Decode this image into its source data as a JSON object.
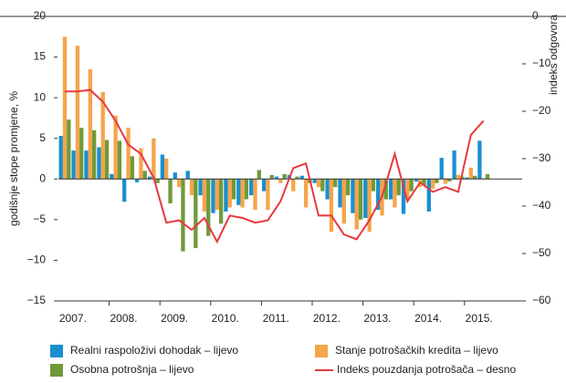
{
  "chart_data": {
    "type": "bar_line",
    "y_label": "godišnje stope promjene, %",
    "y2_label": "indeks odgovora",
    "categories": [
      null,
      "2007.",
      null,
      null,
      null,
      "2008.",
      null,
      null,
      null,
      "2009.",
      null,
      null,
      null,
      "2010.",
      null,
      null,
      null,
      "2011.",
      null,
      null,
      null,
      "2012.",
      null,
      null,
      null,
      "2013.",
      null,
      null,
      null,
      "2014.",
      null,
      null,
      null,
      "2015."
    ],
    "ylim": [
      -15,
      20
    ],
    "yticks": [
      {
        "value": -15,
        "label": "−15"
      },
      {
        "value": -10,
        "label": "−10"
      },
      {
        "value": -5,
        "label": "−5"
      },
      0,
      5,
      10,
      15,
      20
    ],
    "y2lim": [
      -60,
      0
    ],
    "y2ticks": [
      {
        "value": -60,
        "label": "−60"
      },
      {
        "value": -50,
        "label": "−50"
      },
      {
        "value": -40,
        "label": "−40"
      },
      {
        "value": -30,
        "label": "−30"
      },
      {
        "value": -20,
        "label": "−20"
      },
      {
        "value": -10,
        "label": "−10"
      },
      0
    ],
    "series": [
      {
        "name": "Realni raspoloživi dohodak – lijevo",
        "type": "bar",
        "color": "#1a8fd0",
        "values": [
          5.3,
          3.5,
          3.5,
          3.9,
          0.6,
          -2.8,
          -0.4,
          0.3,
          3.0,
          0.8,
          1.0,
          -2.0,
          -4.2,
          -4.0,
          -3.2,
          -2.0,
          -1.5,
          0.3,
          0.5,
          0.4,
          -0.5,
          -2.5,
          -3.5,
          -4.2,
          -4.8,
          -3.8,
          -2.5,
          -4.3,
          -0.3,
          -4.0,
          2.6,
          3.5,
          0.2,
          4.7
        ]
      },
      {
        "name": "Stanje potrošačkih kredita – lijevo",
        "type": "bar",
        "color": "#f5a54a",
        "values": [
          17.5,
          16.4,
          13.5,
          10.7,
          7.8,
          6.3,
          3.8,
          5.0,
          2.5,
          -1.0,
          -2.0,
          -4.0,
          -3.8,
          -3.5,
          -3.5,
          -3.8,
          -3.8,
          -0.5,
          -1.5,
          -3.5,
          -1.0,
          -6.5,
          -5.5,
          -6.2,
          -6.5,
          -4.5,
          -3.5,
          -2.5,
          -1.0,
          -1.2,
          -0.6,
          0.5,
          1.4,
          0.1
        ]
      },
      {
        "name": "Osobna potrošnja – lijevo",
        "type": "bar",
        "color": "#6f9a3a",
        "values": [
          7.3,
          6.3,
          6.0,
          4.8,
          4.7,
          2.8,
          1.0,
          -0.5,
          -3.0,
          -8.9,
          -8.5,
          -7.0,
          -5.5,
          -2.5,
          -2.5,
          1.1,
          0.5,
          0.6,
          0.3,
          -0.5,
          -1.5,
          -1.0,
          -2.0,
          -5.0,
          -1.5,
          -2.5,
          -2.0,
          -1.5,
          -0.8,
          -0.5,
          -0.3,
          0.3,
          0.4,
          0.6
        ]
      },
      {
        "name": "Indeks pouzdanja potrošača – desno",
        "type": "line",
        "axis": "y2",
        "color": "#e8393f",
        "values": [
          -15.8,
          -15.8,
          -15.5,
          -18,
          -22,
          -27,
          -29,
          -34,
          -43.5,
          -43,
          -45,
          -42.5,
          -47.5,
          -42,
          -42.5,
          -43.5,
          -43,
          -39,
          -32,
          -31,
          -42,
          -42,
          -46,
          -47,
          -43,
          -38,
          -29,
          -39,
          -35,
          -37,
          -36,
          -37,
          -25,
          -22
        ]
      }
    ]
  }
}
